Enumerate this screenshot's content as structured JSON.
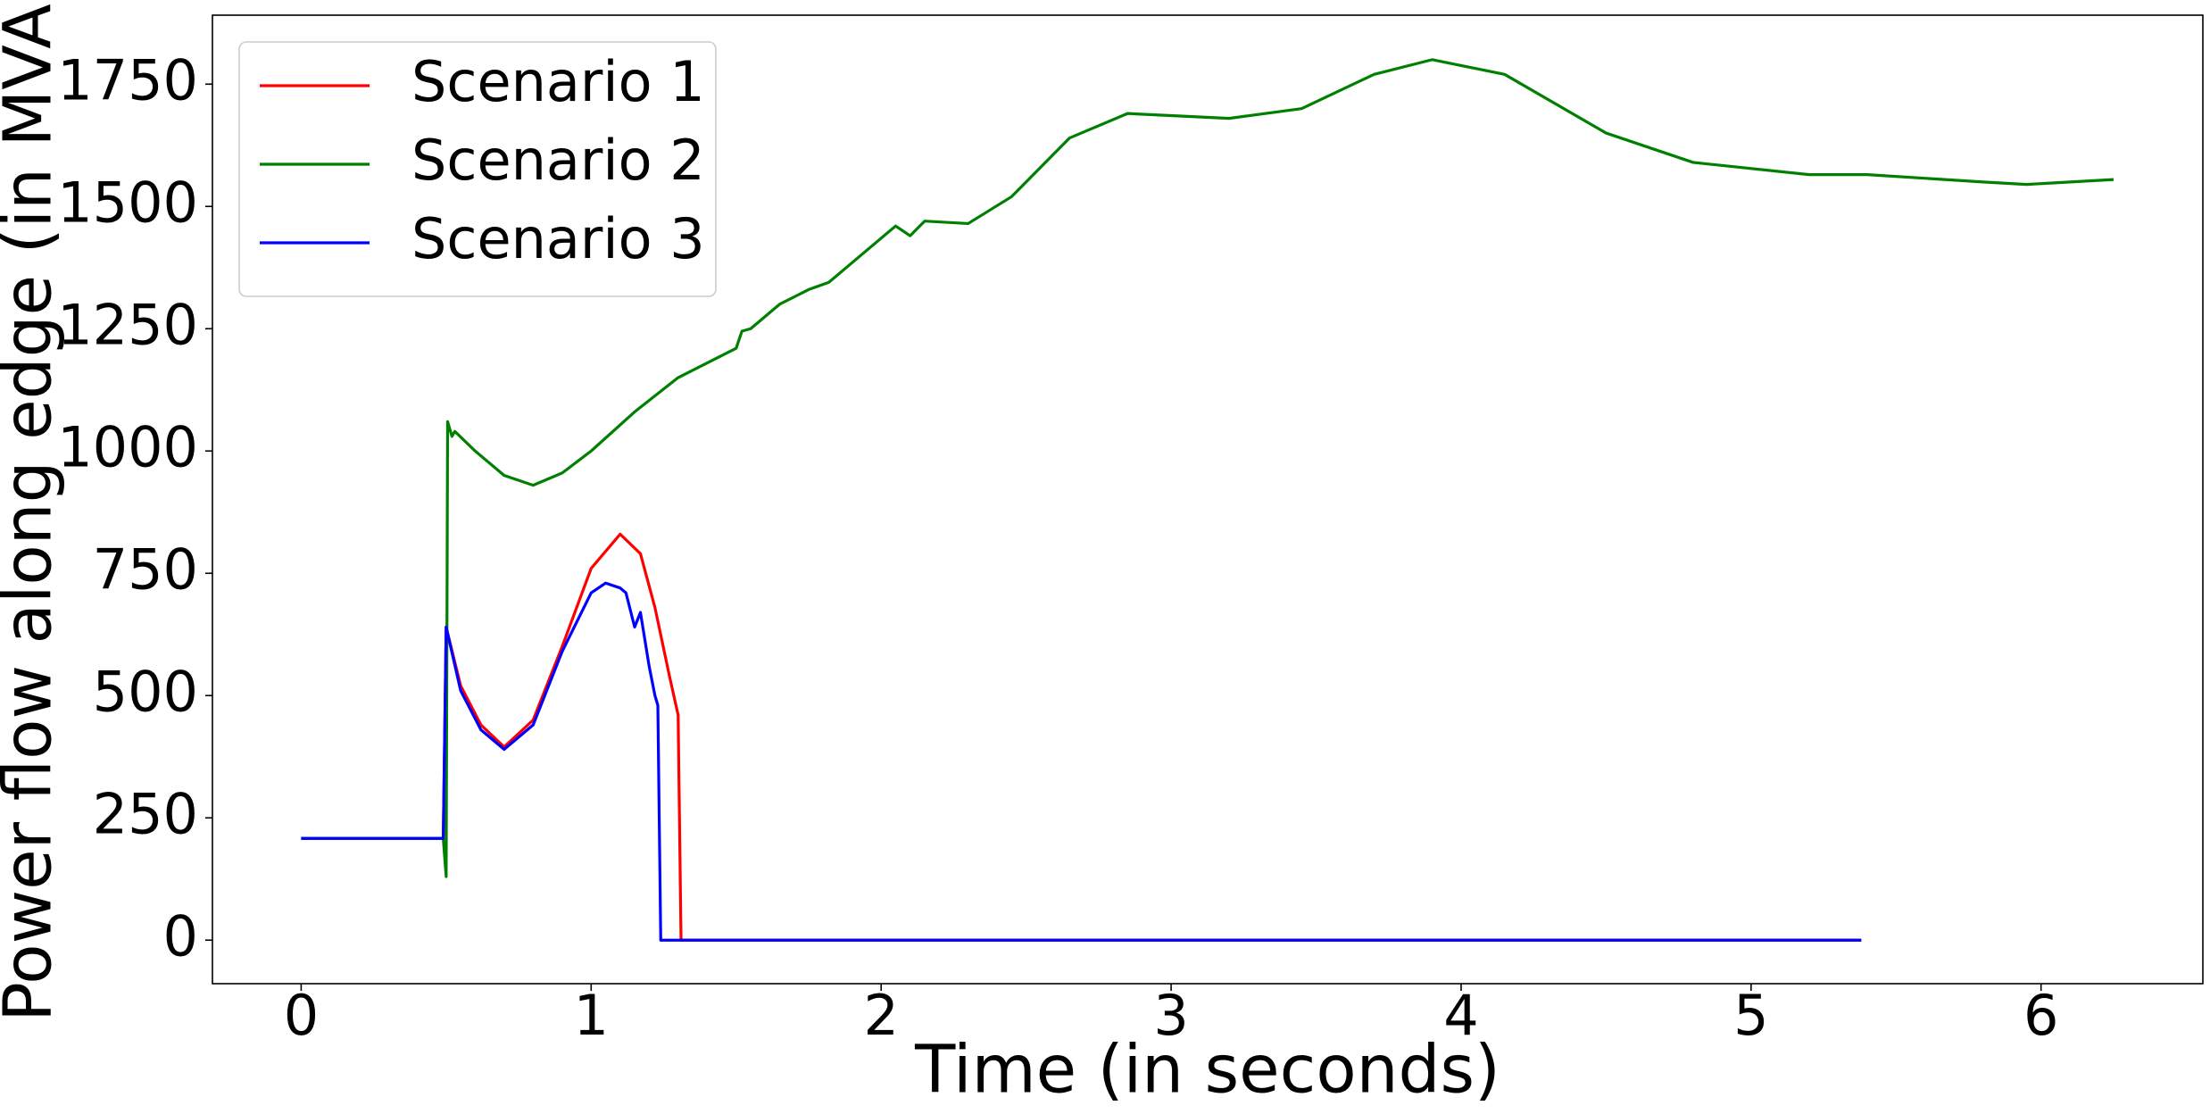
{
  "chart_data": {
    "type": "line",
    "x_label": "Time (in seconds)",
    "y_label": "Power flow along edge (in MVA)",
    "xlim": [
      -0.306,
      6.558
    ],
    "ylim": [
      -89,
      1891
    ],
    "xticks": [
      0,
      1,
      2,
      3,
      4,
      5,
      6
    ],
    "yticks": [
      0,
      250,
      500,
      750,
      1000,
      1250,
      1500,
      1750
    ],
    "legend": "upper left",
    "series": [
      {
        "name": "Scenario 1",
        "color": "#ff0000",
        "x": [
          0,
          0.49,
          0.5,
          0.55,
          0.62,
          0.7,
          0.8,
          0.9,
          1.0,
          1.1,
          1.17,
          1.22,
          1.27,
          1.3,
          1.31,
          5.38
        ],
        "values": [
          208,
          208,
          640,
          520,
          440,
          395,
          450,
          600,
          760,
          830,
          790,
          680,
          540,
          460,
          0,
          0
        ]
      },
      {
        "name": "Scenario 2",
        "color": "#008000",
        "x": [
          0,
          0.49,
          0.5,
          0.505,
          0.52,
          0.53,
          0.6,
          0.7,
          0.8,
          0.9,
          1.0,
          1.15,
          1.3,
          1.5,
          1.52,
          1.55,
          1.65,
          1.75,
          1.82,
          1.95,
          2.05,
          2.1,
          2.15,
          2.3,
          2.45,
          2.65,
          2.85,
          3.2,
          3.45,
          3.7,
          3.9,
          4.15,
          4.5,
          4.8,
          5.2,
          5.4,
          5.8,
          5.95,
          6.25
        ],
        "values": [
          208,
          208,
          130,
          1060,
          1030,
          1040,
          1000,
          950,
          930,
          955,
          1000,
          1080,
          1150,
          1210,
          1245,
          1250,
          1300,
          1330,
          1345,
          1410,
          1460,
          1440,
          1470,
          1465,
          1520,
          1640,
          1690,
          1680,
          1700,
          1770,
          1800,
          1770,
          1650,
          1590,
          1565,
          1565,
          1550,
          1545,
          1555
        ]
      },
      {
        "name": "Scenario 3",
        "color": "#0000ff",
        "x": [
          0,
          0.49,
          0.5,
          0.55,
          0.62,
          0.7,
          0.8,
          0.9,
          1.0,
          1.05,
          1.1,
          1.12,
          1.15,
          1.17,
          1.2,
          1.22,
          1.23,
          1.24,
          5.38
        ],
        "values": [
          208,
          208,
          640,
          510,
          430,
          390,
          440,
          590,
          710,
          730,
          720,
          710,
          640,
          670,
          560,
          500,
          480,
          0,
          0
        ]
      }
    ]
  }
}
